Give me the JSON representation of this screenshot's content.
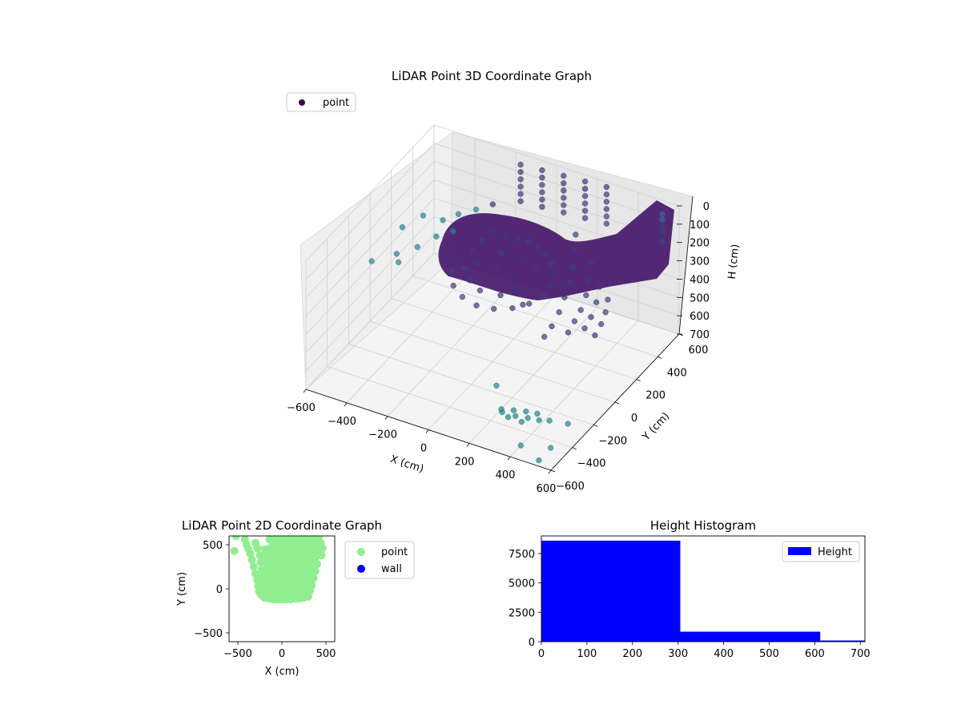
{
  "chart_data": [
    {
      "type": "scatter",
      "projection": "3d",
      "title": "LiDAR Point 3D Coordinate Graph",
      "xlabel": "X (cm)",
      "ylabel": "Y (cm)",
      "zlabel": "H (cm)",
      "xlim": [
        -600,
        600
      ],
      "ylim": [
        -600,
        600
      ],
      "zlim": [
        0,
        700
      ],
      "z_inverted": true,
      "xticks": [
        -600,
        -400,
        -200,
        0,
        200,
        400,
        600
      ],
      "yticks": [
        -600,
        -400,
        -200,
        0,
        200,
        400,
        600
      ],
      "zticks": [
        0,
        100,
        200,
        300,
        400,
        500,
        600,
        700
      ],
      "grid": true,
      "legend": {
        "placement": "upper-left",
        "entries": [
          {
            "label": "point",
            "color": "#440154"
          }
        ]
      },
      "colormap": "viridis",
      "series": [
        {
          "name": "point",
          "points": [
            [
              -150,
              300,
              230
            ],
            [
              -100,
              320,
              245
            ],
            [
              -50,
              330,
              250
            ],
            [
              0,
              340,
              255
            ],
            [
              50,
              330,
              260
            ],
            [
              100,
              300,
              265
            ],
            [
              150,
              260,
              270
            ],
            [
              200,
              200,
              275
            ],
            [
              220,
              120,
              280
            ],
            [
              230,
              40,
              280
            ],
            [
              200,
              -40,
              285
            ],
            [
              150,
              -100,
              290
            ],
            [
              80,
              -140,
              295
            ],
            [
              0,
              -150,
              300
            ],
            [
              -80,
              -130,
              295
            ],
            [
              -150,
              -80,
              290
            ],
            [
              -200,
              0,
              280
            ],
            [
              -200,
              80,
              270
            ],
            [
              -180,
              160,
              260
            ],
            [
              -170,
              230,
              245
            ],
            [
              -120,
              100,
              270
            ],
            [
              -40,
              120,
              275
            ],
            [
              40,
              100,
              280
            ],
            [
              100,
              40,
              285
            ],
            [
              60,
              -40,
              290
            ],
            [
              -30,
              -60,
              285
            ],
            [
              -100,
              -20,
              280
            ],
            [
              -60,
              200,
              255
            ],
            [
              20,
              220,
              255
            ],
            [
              120,
              180,
              265
            ],
            [
              180,
              -60,
              285
            ],
            [
              -160,
              40,
              275
            ],
            [
              250,
              300,
              100
            ],
            [
              270,
              250,
              150
            ],
            [
              290,
              200,
              200
            ],
            [
              300,
              150,
              250
            ],
            [
              300,
              100,
              300
            ],
            [
              300,
              50,
              350
            ],
            [
              290,
              0,
              400
            ],
            [
              280,
              -50,
              430
            ],
            [
              360,
              240,
              180
            ],
            [
              370,
              190,
              240
            ],
            [
              380,
              150,
              290
            ],
            [
              380,
              100,
              340
            ],
            [
              370,
              60,
              380
            ],
            [
              360,
              20,
              420
            ],
            [
              420,
              200,
              260
            ],
            [
              430,
              150,
              310
            ],
            [
              430,
              100,
              360
            ],
            [
              420,
              60,
              400
            ],
            [
              470,
              180,
              300
            ],
            [
              480,
              140,
              340
            ],
            [
              480,
              100,
              380
            ],
            [
              470,
              60,
              420
            ],
            [
              -150,
              550,
              20
            ],
            [
              -150,
              550,
              60
            ],
            [
              -150,
              550,
              100
            ],
            [
              -150,
              550,
              140
            ],
            [
              -150,
              550,
              180
            ],
            [
              -150,
              550,
              220
            ],
            [
              -50,
              560,
              20
            ],
            [
              -50,
              560,
              60
            ],
            [
              -50,
              560,
              100
            ],
            [
              -50,
              560,
              140
            ],
            [
              -50,
              560,
              180
            ],
            [
              -50,
              560,
              220
            ],
            [
              50,
              570,
              20
            ],
            [
              50,
              570,
              60
            ],
            [
              50,
              570,
              100
            ],
            [
              50,
              570,
              140
            ],
            [
              50,
              570,
              180
            ],
            [
              50,
              570,
              220
            ],
            [
              150,
              580,
              20
            ],
            [
              150,
              580,
              60
            ],
            [
              150,
              580,
              100
            ],
            [
              150,
              580,
              140
            ],
            [
              150,
              580,
              180
            ],
            [
              150,
              580,
              220
            ],
            [
              250,
              590,
              20
            ],
            [
              250,
              590,
              60
            ],
            [
              250,
              590,
              100
            ],
            [
              250,
              590,
              140
            ],
            [
              250,
              590,
              180
            ],
            [
              250,
              590,
              220
            ],
            [
              560,
              520,
              10
            ],
            [
              560,
              520,
              40
            ],
            [
              560,
              520,
              70
            ],
            [
              560,
              520,
              100
            ],
            [
              560,
              520,
              130
            ],
            [
              560,
              520,
              160
            ],
            [
              -520,
              150,
              250
            ],
            [
              -470,
              250,
              230
            ],
            [
              -400,
              300,
              260
            ],
            [
              -350,
              350,
              240
            ],
            [
              -480,
              20,
              300
            ],
            [
              -420,
              100,
              290
            ],
            [
              -300,
              420,
              240
            ],
            [
              -250,
              480,
              230
            ],
            [
              -380,
              200,
              280
            ],
            [
              -330,
              260,
              270
            ],
            [
              -560,
              -60,
              320
            ],
            [
              -450,
              -20,
              310
            ],
            [
              200,
              -300,
              700
            ],
            [
              250,
              -280,
              700
            ],
            [
              300,
              -260,
              700
            ],
            [
              350,
              -250,
              700
            ],
            [
              220,
              -330,
              690
            ],
            [
              280,
              -320,
              695
            ],
            [
              330,
              -300,
              700
            ],
            [
              380,
              -290,
              700
            ],
            [
              420,
              -270,
              700
            ],
            [
              500,
              -250,
              700
            ],
            [
              260,
              -350,
              690
            ],
            [
              320,
              -340,
              700
            ],
            [
              150,
              -250,
              620
            ],
            [
              520,
              -450,
              700
            ],
            [
              520,
              -560,
              700
            ],
            [
              400,
              -500,
              700
            ]
          ],
          "height_ranges_note": "values estimated from image"
        }
      ]
    },
    {
      "type": "scatter",
      "title": "LiDAR Point 2D Coordinate Graph",
      "xlabel": "X (cm)",
      "ylabel": "Y (cm)",
      "xlim": [
        -600,
        600
      ],
      "ylim": [
        -600,
        600
      ],
      "xticks": [
        -500,
        0,
        500
      ],
      "yticks": [
        -500,
        0,
        500
      ],
      "grid": false,
      "legend": {
        "placement": "outside-right",
        "entries": [
          {
            "label": "point",
            "color": "#90ee90"
          },
          {
            "label": "wall",
            "color": "#0000ff"
          }
        ]
      },
      "series": [
        {
          "name": "point",
          "color": "#90ee90",
          "points": [
            [
              -540,
              430
            ],
            [
              -520,
              600
            ],
            [
              -420,
              560
            ],
            [
              -400,
              500
            ],
            [
              -380,
              450
            ],
            [
              -360,
              400
            ],
            [
              -340,
              330
            ],
            [
              -320,
              250
            ],
            [
              -300,
              170
            ],
            [
              -280,
              100
            ],
            [
              -270,
              30
            ],
            [
              -260,
              -30
            ],
            [
              -300,
              520
            ],
            [
              -280,
              460
            ],
            [
              -250,
              380
            ],
            [
              -240,
              300
            ],
            [
              -230,
              220
            ],
            [
              -220,
              140
            ],
            [
              -220,
              60
            ],
            [
              -220,
              -20
            ],
            [
              -240,
              -60
            ],
            [
              -220,
              -80
            ],
            [
              -200,
              -100
            ],
            [
              -150,
              -110
            ],
            [
              -100,
              -120
            ],
            [
              -50,
              -120
            ],
            [
              0,
              -120
            ],
            [
              50,
              -120
            ],
            [
              100,
              -120
            ],
            [
              150,
              -115
            ],
            [
              200,
              -110
            ],
            [
              250,
              -100
            ],
            [
              300,
              -90
            ],
            [
              -140,
              560
            ],
            [
              -120,
              470
            ],
            [
              -100,
              380
            ],
            [
              -60,
              600
            ],
            [
              -40,
              520
            ],
            [
              -20,
              440
            ],
            [
              0,
              360
            ],
            [
              20,
              280
            ],
            [
              40,
              200
            ],
            [
              60,
              120
            ],
            [
              80,
              40
            ],
            [
              100,
              -40
            ],
            [
              140,
              600
            ],
            [
              160,
              520
            ],
            [
              180,
              440
            ],
            [
              200,
              360
            ],
            [
              220,
              280
            ],
            [
              240,
              200
            ],
            [
              260,
              120
            ],
            [
              280,
              40
            ],
            [
              300,
              -40
            ],
            [
              320,
              600
            ],
            [
              340,
              520
            ],
            [
              360,
              440
            ],
            [
              380,
              360
            ],
            [
              400,
              280
            ],
            [
              380,
              200
            ],
            [
              360,
              120
            ],
            [
              340,
              40
            ],
            [
              320,
              -20
            ],
            [
              420,
              600
            ],
            [
              440,
              520
            ],
            [
              460,
              460
            ],
            [
              450,
              380
            ]
          ]
        },
        {
          "name": "wall",
          "color": "#0000ff",
          "points": []
        }
      ]
    },
    {
      "type": "bar",
      "subtype": "histogram",
      "title": "Height Histogram",
      "xlim": [
        0,
        710
      ],
      "ylim": [
        0,
        9000
      ],
      "xticks": [
        0,
        100,
        200,
        300,
        400,
        500,
        600,
        700
      ],
      "yticks": [
        0,
        2500,
        5000,
        7500
      ],
      "grid": false,
      "legend": {
        "placement": "upper-right",
        "entries": [
          {
            "label": "Height",
            "color": "#0000ff"
          }
        ]
      },
      "series": [
        {
          "name": "Height",
          "color": "#0000ff",
          "bins": [
            {
              "start": 0,
              "end": 305,
              "count": 8600
            },
            {
              "start": 305,
              "end": 612,
              "count": 850
            },
            {
              "start": 612,
              "end": 710,
              "count": 100
            }
          ]
        }
      ]
    }
  ]
}
